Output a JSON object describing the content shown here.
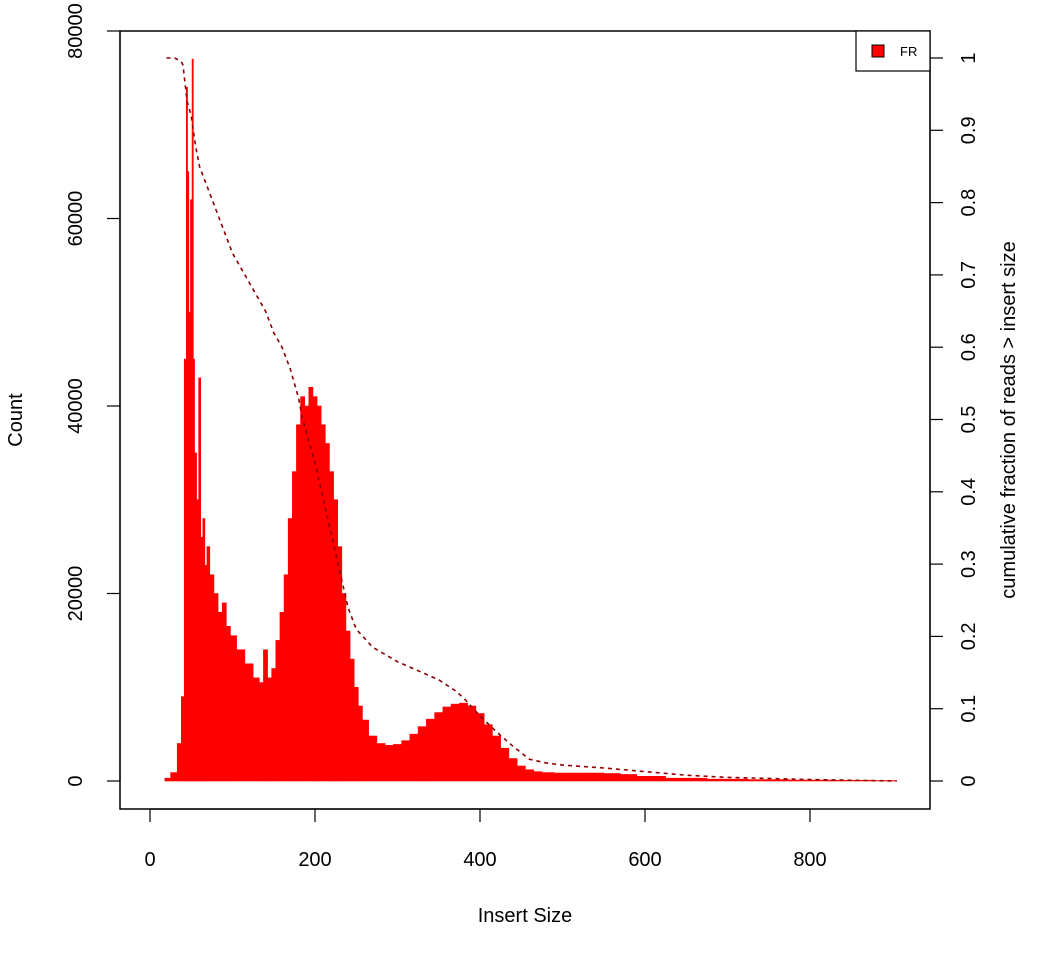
{
  "chart_data": {
    "type": "bar",
    "title": "",
    "xlabel": "Insert Size",
    "ylabel": "Count",
    "y2label": "cumulative fraction of reads > insert size",
    "xlim": [
      0,
      940
    ],
    "ylim": [
      0,
      80000
    ],
    "y2lim": [
      0,
      1
    ],
    "x_ticks": [
      0,
      200,
      400,
      600,
      800
    ],
    "y_ticks": [
      0,
      20000,
      40000,
      60000,
      80000
    ],
    "y2_ticks": [
      0,
      0.1,
      0.2,
      0.3,
      0.4,
      0.5,
      0.6,
      0.7,
      0.8,
      0.9,
      1
    ],
    "y2_tick_labels": [
      "0",
      "0.1",
      "0.2",
      "0.3",
      "0.4",
      "0.5",
      "0.6",
      "0.7",
      "0.8",
      "0.9",
      "1"
    ],
    "legend": {
      "position": "top-right",
      "entries": [
        {
          "name": "FR",
          "color": "#ff0000"
        }
      ]
    },
    "grid": false,
    "series": [
      {
        "name": "FR",
        "kind": "histogram",
        "color": "#ff0000",
        "x": [
          20,
          30,
          36,
          40,
          43,
          45,
          46,
          48,
          50,
          52,
          53,
          55,
          58,
          60,
          63,
          65,
          68,
          70,
          75,
          80,
          85,
          90,
          95,
          100,
          110,
          120,
          130,
          135,
          140,
          145,
          150,
          155,
          160,
          165,
          170,
          175,
          180,
          185,
          190,
          195,
          200,
          205,
          210,
          215,
          220,
          225,
          230,
          235,
          240,
          245,
          250,
          255,
          260,
          270,
          280,
          290,
          300,
          310,
          320,
          330,
          340,
          350,
          360,
          370,
          380,
          390,
          400,
          410,
          420,
          430,
          440,
          450,
          460,
          470,
          480,
          500,
          520,
          540,
          560,
          580,
          600,
          650,
          700,
          750,
          800,
          850,
          905
        ],
        "values": [
          300,
          900,
          4000,
          9000,
          45000,
          74000,
          65000,
          50000,
          62000,
          77000,
          45000,
          35000,
          30000,
          43000,
          26000,
          28000,
          23000,
          25000,
          22000,
          20000,
          18000,
          19000,
          16500,
          15500,
          14000,
          12500,
          11000,
          10500,
          14000,
          11000,
          12000,
          15000,
          18000,
          22000,
          28000,
          33000,
          38000,
          41000,
          40000,
          42000,
          41000,
          40000,
          38000,
          36000,
          33000,
          30000,
          25000,
          20000,
          16000,
          13000,
          10000,
          8000,
          6500,
          4800,
          4000,
          3800,
          3900,
          4300,
          5000,
          5800,
          6600,
          7300,
          7900,
          8200,
          8300,
          8000,
          7200,
          6000,
          4800,
          3500,
          2400,
          1600,
          1200,
          1000,
          900,
          850,
          850,
          850,
          800,
          700,
          500,
          300,
          200,
          150,
          100,
          80,
          50
        ]
      },
      {
        "name": "cumulative fraction of reads > insert size",
        "kind": "line",
        "style": "dashed",
        "color": "#8b0000",
        "axis": "right",
        "x": [
          20,
          30,
          38,
          40,
          43,
          45,
          50,
          55,
          60,
          70,
          80,
          90,
          100,
          120,
          140,
          150,
          160,
          170,
          175,
          180,
          185,
          190,
          200,
          210,
          220,
          230,
          240,
          250,
          270,
          300,
          330,
          350,
          370,
          380,
          400,
          420,
          440,
          460,
          480,
          500,
          550,
          600,
          650,
          700,
          800,
          905
        ],
        "values": [
          1.0,
          1.0,
          0.995,
          0.99,
          0.96,
          0.94,
          0.92,
          0.88,
          0.85,
          0.82,
          0.79,
          0.76,
          0.73,
          0.69,
          0.65,
          0.62,
          0.6,
          0.57,
          0.55,
          0.53,
          0.5,
          0.48,
          0.44,
          0.39,
          0.34,
          0.29,
          0.24,
          0.21,
          0.185,
          0.165,
          0.15,
          0.14,
          0.125,
          0.115,
          0.09,
          0.068,
          0.048,
          0.03,
          0.025,
          0.022,
          0.018,
          0.013,
          0.008,
          0.005,
          0.002,
          0.0
        ]
      }
    ]
  }
}
